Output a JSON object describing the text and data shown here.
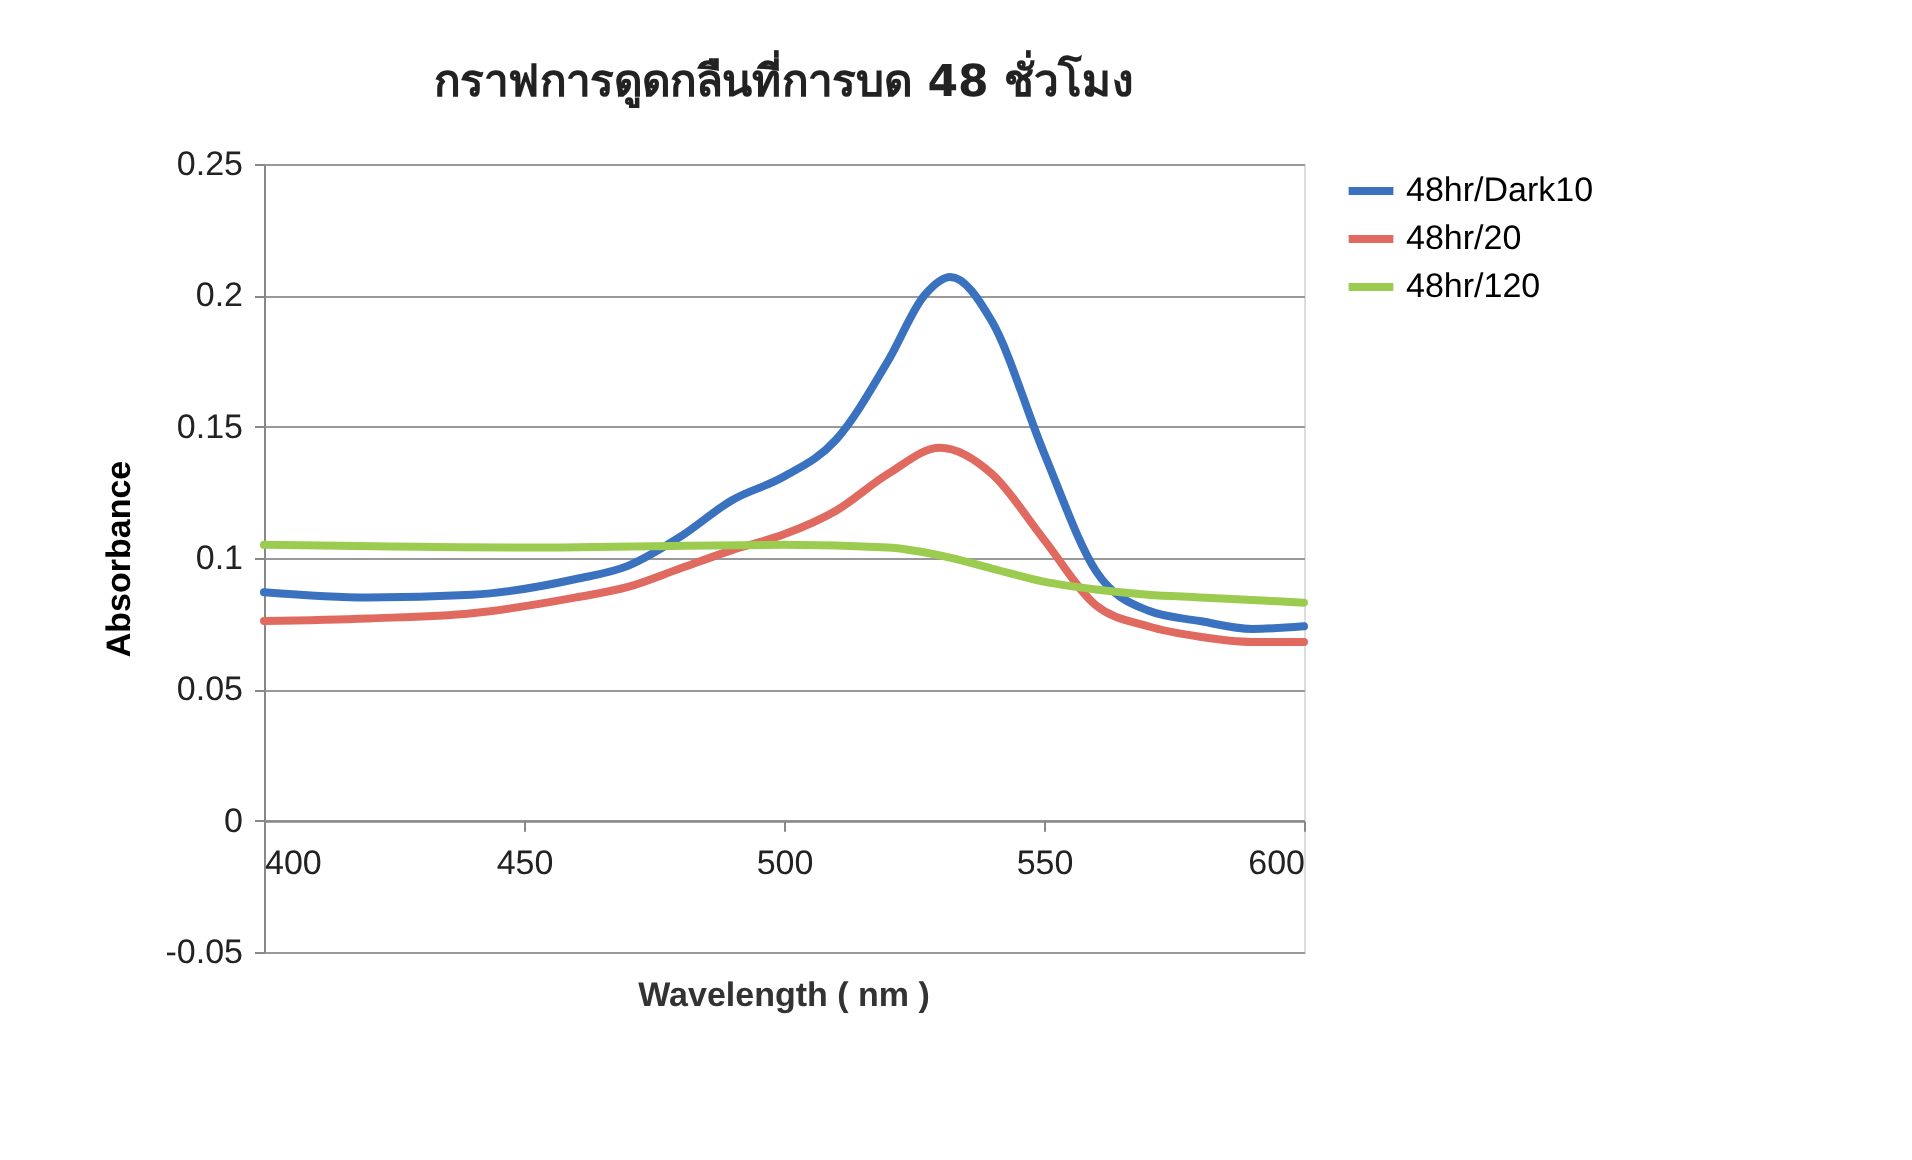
{
  "chart_data": {
    "type": "line",
    "title": "กราฟการดูดกลืนที่การบด 48 ชั่วโมง",
    "xlabel": "Wavelength ( nm )",
    "ylabel": "Absorbance",
    "xlim": [
      400,
      600
    ],
    "xticks": [
      400,
      450,
      500,
      550,
      600
    ],
    "ylim": [
      -0.05,
      0.25
    ],
    "yticks": [
      -0.05,
      0,
      0.05,
      0.1,
      0.15,
      0.2,
      0.25
    ],
    "grid": "y",
    "legend": "right",
    "marker": "none",
    "line_style": "solid",
    "series": [
      {
        "name": "48hr/Dark10",
        "color": "#3a72c0",
        "x": [
          400,
          420,
          440,
          460,
          470,
          480,
          490,
          500,
          510,
          520,
          527,
          532,
          540,
          550,
          560,
          570,
          580,
          590,
          600
        ],
        "values": [
          0.087,
          0.085,
          0.086,
          0.092,
          0.097,
          0.108,
          0.122,
          0.131,
          0.145,
          0.175,
          0.2,
          0.207,
          0.19,
          0.14,
          0.095,
          0.08,
          0.076,
          0.073,
          0.074
        ]
      },
      {
        "name": "48hr/20",
        "color": "#e06a60",
        "x": [
          400,
          420,
          440,
          460,
          470,
          480,
          490,
          500,
          510,
          520,
          530,
          540,
          550,
          560,
          570,
          580,
          590,
          600
        ],
        "values": [
          0.076,
          0.077,
          0.079,
          0.085,
          0.089,
          0.096,
          0.103,
          0.109,
          0.118,
          0.132,
          0.142,
          0.132,
          0.107,
          0.082,
          0.074,
          0.07,
          0.068,
          0.068
        ]
      },
      {
        "name": "48hr/120",
        "color": "#9bcc4f",
        "x": [
          400,
          450,
          500,
          520,
          530,
          540,
          550,
          560,
          570,
          580,
          590,
          600
        ],
        "values": [
          0.105,
          0.104,
          0.105,
          0.104,
          0.101,
          0.096,
          0.091,
          0.088,
          0.086,
          0.085,
          0.084,
          0.083
        ]
      }
    ]
  }
}
